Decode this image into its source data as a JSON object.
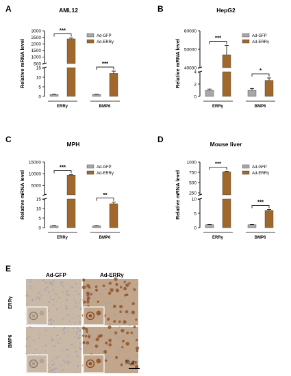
{
  "colors": {
    "gfp": "#a8a8a8",
    "err": "#a0682a",
    "axis": "#000000",
    "ihc_bg_gfp": "#c9b8a6",
    "ihc_bg_err": "#c2a68c",
    "ihc_stain": "#8a4a22",
    "ihc_hema": "#9aa2b6"
  },
  "legend": [
    "Ad-GFP",
    "Ad-ERRγ"
  ],
  "chart_data": [
    {
      "panel": "A",
      "title": "AML12",
      "type": "bar",
      "ylabel": "Relative mRNA level",
      "categories": [
        "ERRγ",
        "BMP6"
      ],
      "series": [
        {
          "name": "Ad-GFP",
          "values": [
            1,
            1
          ],
          "errors": [
            0.1,
            0.1
          ]
        },
        {
          "name": "Ad-ERRγ",
          "values": [
            2380,
            12
          ],
          "errors": [
            70,
            1.2
          ]
        }
      ],
      "axis_break": {
        "lower": [
          0,
          15
        ],
        "upper": [
          500,
          3000
        ]
      },
      "lower_ticks": [
        0,
        5,
        10,
        15
      ],
      "upper_ticks": [
        500,
        1000,
        1500,
        2000,
        2500,
        3000
      ],
      "significance": [
        "***",
        "***"
      ]
    },
    {
      "panel": "B",
      "title": "HepG2",
      "type": "bar",
      "ylabel": "Relative mRNA level",
      "categories": [
        "ERRγ",
        "BMP6"
      ],
      "series": [
        {
          "name": "Ad-GFP",
          "values": [
            1,
            1
          ],
          "errors": [
            0.2,
            0.3
          ]
        },
        {
          "name": "Ad-ERRγ",
          "values": [
            47000,
            2.6
          ],
          "errors": [
            5000,
            0.4
          ]
        }
      ],
      "axis_break": {
        "lower": [
          0,
          4
        ],
        "upper": [
          40000,
          60000
        ]
      },
      "lower_ticks": [
        0,
        2,
        4
      ],
      "upper_ticks": [
        40000,
        50000,
        60000
      ],
      "significance": [
        "***",
        "*"
      ]
    },
    {
      "panel": "C",
      "title": "MPH",
      "type": "bar",
      "ylabel": "Relative mRNA level",
      "categories": [
        "ERRγ",
        "BMP6"
      ],
      "series": [
        {
          "name": "Ad-GFP",
          "values": [
            1,
            1
          ],
          "errors": [
            0.1,
            0.1
          ]
        },
        {
          "name": "Ad-ERRγ",
          "values": [
            9400,
            12.5
          ],
          "errors": [
            200,
            0.8
          ]
        }
      ],
      "axis_break": {
        "lower": [
          0,
          15
        ],
        "upper": [
          1000,
          15000
        ]
      },
      "lower_ticks": [
        0,
        5,
        10,
        15
      ],
      "upper_ticks": [
        5000,
        10000,
        15000
      ],
      "significance": [
        "***",
        "**"
      ]
    },
    {
      "panel": "D",
      "title": "Mouse liver",
      "type": "bar",
      "ylabel": "Relative mRNA level",
      "categories": [
        "ERRγ",
        "BMP6"
      ],
      "series": [
        {
          "name": "Ad-GFP",
          "values": [
            1,
            1
          ],
          "errors": [
            0.1,
            0.1
          ]
        },
        {
          "name": "Ad-ERRγ",
          "values": [
            760,
            6
          ],
          "errors": [
            15,
            0.3
          ]
        }
      ],
      "axis_break": {
        "lower": [
          0,
          10
        ],
        "upper": [
          200,
          1000
        ]
      },
      "lower_ticks": [
        0,
        5,
        10
      ],
      "upper_ticks": [
        250,
        500,
        750,
        1000
      ],
      "significance": [
        "***",
        "***"
      ]
    }
  ],
  "ihc": {
    "panel": "E",
    "columns": [
      "Ad-GFP",
      "Ad-ERRγ"
    ],
    "rows": [
      "ERRγ",
      "BMP6"
    ],
    "scale_bar": "50 μm"
  }
}
